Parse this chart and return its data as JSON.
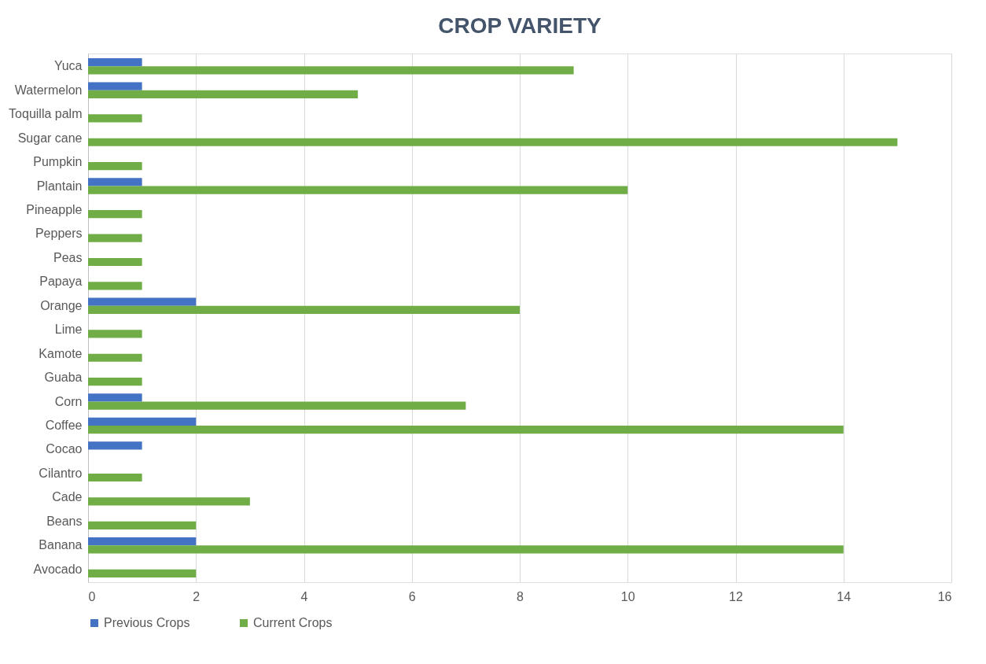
{
  "chart_data": {
    "type": "bar",
    "orientation": "horizontal",
    "title": "CROP VARIETY",
    "categories": [
      "Yuca",
      "Watermelon",
      "Toquilla palm",
      "Sugar cane",
      "Pumpkin",
      "Plantain",
      "Pineapple",
      "Peppers",
      "Peas",
      "Papaya",
      "Orange",
      "Lime",
      "Kamote",
      "Guaba",
      "Corn",
      "Coffee",
      "Cocao",
      "Cilantro",
      "Cade",
      "Beans",
      "Banana",
      "Avocado"
    ],
    "series": [
      {
        "name": "Previous Crops",
        "color": "#4472c4",
        "values": [
          1,
          1,
          0,
          0,
          0,
          1,
          0,
          0,
          0,
          0,
          2,
          0,
          0,
          0,
          1,
          2,
          1,
          0,
          0,
          0,
          2,
          0
        ]
      },
      {
        "name": "Current Crops",
        "color": "#70ad47",
        "values": [
          9,
          5,
          1,
          15,
          1,
          10,
          1,
          1,
          1,
          1,
          8,
          1,
          1,
          1,
          7,
          14,
          0,
          1,
          3,
          2,
          14,
          2
        ]
      }
    ],
    "xlim": [
      0,
      16
    ],
    "xticks": [
      0,
      2,
      4,
      6,
      8,
      10,
      12,
      14,
      16
    ],
    "grid": "x",
    "legend": "bottom"
  }
}
